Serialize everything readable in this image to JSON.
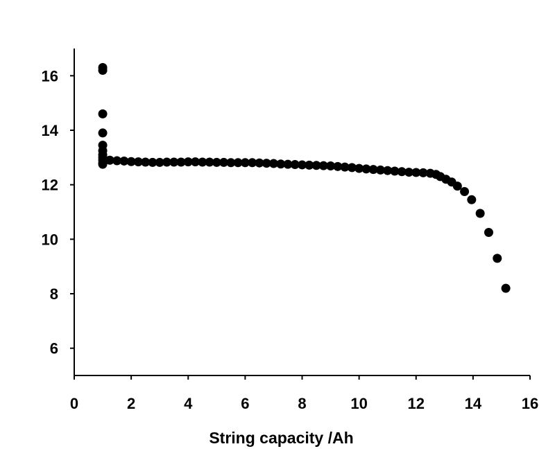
{
  "chart_data": {
    "type": "scatter",
    "title": "",
    "xlabel": "String capacity /Ah",
    "ylabel": "",
    "xlim": [
      0,
      16
    ],
    "ylim": [
      5,
      17
    ],
    "xticks": [
      0,
      2,
      4,
      6,
      8,
      10,
      12,
      14,
      16
    ],
    "yticks": [
      6,
      8,
      10,
      12,
      14,
      16
    ],
    "grid": false,
    "legend": "none",
    "marker_color": "#000000",
    "series": [
      {
        "points": [
          [
            1.0,
            16.3
          ],
          [
            1.0,
            16.2
          ],
          [
            1.0,
            14.6
          ],
          [
            1.0,
            13.9
          ],
          [
            1.0,
            13.45
          ],
          [
            1.0,
            13.25
          ],
          [
            1.0,
            13.1
          ],
          [
            1.0,
            13.0
          ],
          [
            1.0,
            12.9
          ],
          [
            1.0,
            12.8
          ],
          [
            1.0,
            12.75
          ],
          [
            1.25,
            12.9
          ],
          [
            1.5,
            12.88
          ],
          [
            1.75,
            12.87
          ],
          [
            2.0,
            12.85
          ],
          [
            2.25,
            12.84
          ],
          [
            2.5,
            12.83
          ],
          [
            2.75,
            12.82
          ],
          [
            3.0,
            12.82
          ],
          [
            3.25,
            12.83
          ],
          [
            3.5,
            12.83
          ],
          [
            3.75,
            12.83
          ],
          [
            4.0,
            12.84
          ],
          [
            4.25,
            12.84
          ],
          [
            4.5,
            12.83
          ],
          [
            4.75,
            12.83
          ],
          [
            5.0,
            12.82
          ],
          [
            5.25,
            12.82
          ],
          [
            5.5,
            12.81
          ],
          [
            5.75,
            12.81
          ],
          [
            6.0,
            12.81
          ],
          [
            6.25,
            12.81
          ],
          [
            6.5,
            12.8
          ],
          [
            6.75,
            12.79
          ],
          [
            7.0,
            12.78
          ],
          [
            7.25,
            12.76
          ],
          [
            7.5,
            12.75
          ],
          [
            7.75,
            12.74
          ],
          [
            8.0,
            12.73
          ],
          [
            8.25,
            12.72
          ],
          [
            8.5,
            12.71
          ],
          [
            8.75,
            12.7
          ],
          [
            9.0,
            12.69
          ],
          [
            9.25,
            12.67
          ],
          [
            9.5,
            12.65
          ],
          [
            9.75,
            12.63
          ],
          [
            10.0,
            12.6
          ],
          [
            10.25,
            12.58
          ],
          [
            10.5,
            12.56
          ],
          [
            10.75,
            12.54
          ],
          [
            11.0,
            12.52
          ],
          [
            11.25,
            12.5
          ],
          [
            11.5,
            12.48
          ],
          [
            11.75,
            12.46
          ],
          [
            12.0,
            12.45
          ],
          [
            12.25,
            12.44
          ],
          [
            12.5,
            12.42
          ],
          [
            12.7,
            12.38
          ],
          [
            12.85,
            12.3
          ],
          [
            13.05,
            12.2
          ],
          [
            13.25,
            12.1
          ],
          [
            13.45,
            11.95
          ],
          [
            13.7,
            11.75
          ],
          [
            13.95,
            11.45
          ],
          [
            14.25,
            10.95
          ],
          [
            14.55,
            10.25
          ],
          [
            14.85,
            9.3
          ],
          [
            15.15,
            8.2
          ]
        ]
      }
    ]
  }
}
